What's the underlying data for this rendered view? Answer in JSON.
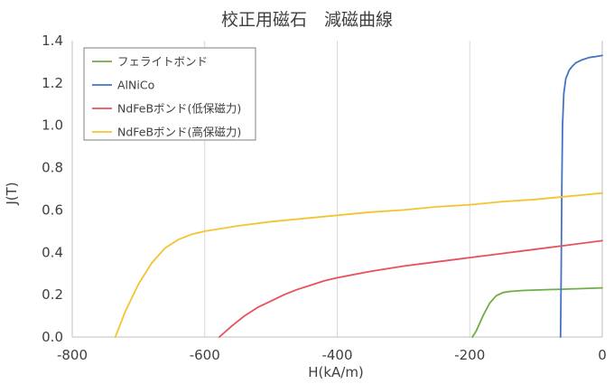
{
  "chart_data": {
    "type": "line",
    "title": "校正用磁石　減磁曲線",
    "xlabel": "H(kA/m)",
    "ylabel": "J(T)",
    "xlim": [
      -800,
      0
    ],
    "ylim": [
      0,
      1.4
    ],
    "xticks": [
      -800,
      -600,
      -400,
      -200,
      0
    ],
    "yticks": [
      0.0,
      0.2,
      0.4,
      0.6,
      0.8,
      1.0,
      1.2,
      1.4
    ],
    "xtick_labels": [
      "-800",
      "-600",
      "-400",
      "-200",
      "0"
    ],
    "ytick_labels": [
      "0.0",
      "0.2",
      "0.4",
      "0.6",
      "0.8",
      "1.0",
      "1.2",
      "1.4"
    ],
    "grid": {
      "vertical": true,
      "horizontal": false
    },
    "legend_position": "top-left",
    "series": [
      {
        "name": "フェライトボンド",
        "color": "#70ad47",
        "x": [
          -196,
          -190,
          -180,
          -170,
          -160,
          -150,
          -140,
          -120,
          -100,
          -80,
          -60,
          -40,
          -20,
          0
        ],
        "y": [
          0.0,
          0.03,
          0.1,
          0.16,
          0.195,
          0.21,
          0.215,
          0.22,
          0.222,
          0.224,
          0.226,
          0.228,
          0.23,
          0.232
        ]
      },
      {
        "name": "AlNiCo",
        "color": "#4472c4",
        "x": [
          -63,
          -62,
          -61,
          -60,
          -58,
          -55,
          -50,
          -45,
          -40,
          -30,
          -20,
          -10,
          0
        ],
        "y": [
          0.0,
          0.3,
          0.7,
          1.0,
          1.15,
          1.22,
          1.26,
          1.28,
          1.295,
          1.31,
          1.32,
          1.325,
          1.33
        ]
      },
      {
        "name": "NdFeBボンド(低保磁力)",
        "color": "#e8505b",
        "x": [
          -578,
          -560,
          -540,
          -520,
          -500,
          -480,
          -460,
          -440,
          -420,
          -400,
          -350,
          -300,
          -250,
          -200,
          -150,
          -100,
          -50,
          0
        ],
        "y": [
          0.0,
          0.05,
          0.1,
          0.14,
          0.17,
          0.2,
          0.225,
          0.245,
          0.265,
          0.28,
          0.31,
          0.335,
          0.355,
          0.375,
          0.395,
          0.415,
          0.435,
          0.455
        ]
      },
      {
        "name": "NdFeBボンド(高保磁力)",
        "color": "#f4c430",
        "x": [
          -735,
          -720,
          -700,
          -680,
          -660,
          -640,
          -620,
          -600,
          -550,
          -500,
          -450,
          -400,
          -350,
          -300,
          -250,
          -200,
          -150,
          -100,
          -50,
          0
        ],
        "y": [
          0.0,
          0.12,
          0.25,
          0.35,
          0.42,
          0.46,
          0.485,
          0.5,
          0.525,
          0.545,
          0.56,
          0.575,
          0.59,
          0.6,
          0.615,
          0.625,
          0.64,
          0.65,
          0.665,
          0.68
        ]
      }
    ]
  }
}
